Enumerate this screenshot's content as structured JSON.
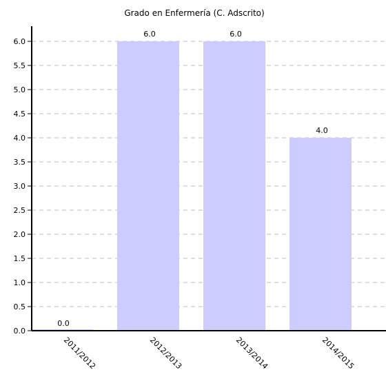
{
  "chart_data": {
    "type": "bar",
    "title": "",
    "subtitle": "Grado en Enfermería (C. Adscrito)",
    "xlabel": "",
    "ylabel": "",
    "categories": [
      "2011/2012",
      "2012/2013",
      "2013/2014",
      "2014/2015"
    ],
    "values": [
      0.0,
      6.0,
      6.0,
      4.0
    ],
    "value_labels": [
      "0.0",
      "6.0",
      "6.0",
      "4.0"
    ],
    "ylim": [
      0,
      6.0
    ],
    "yticks": [
      "0.0",
      "0.5",
      "1.0",
      "1.5",
      "2.0",
      "2.5",
      "3.0",
      "3.5",
      "4.0",
      "4.5",
      "5.0",
      "5.5",
      "6.0"
    ],
    "grid": true,
    "legend": "none",
    "colors": {
      "bar": "#ccccff",
      "axis": "#000000",
      "grid": "#bdbdbd"
    }
  }
}
